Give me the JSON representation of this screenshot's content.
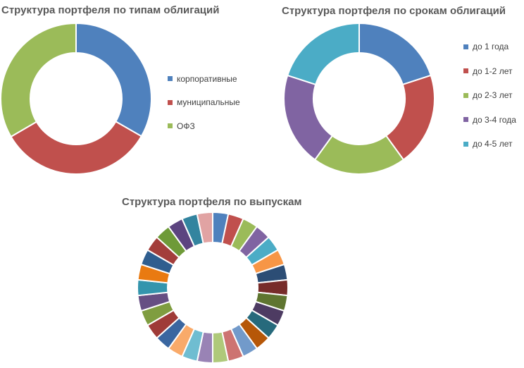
{
  "chart_data": [
    {
      "type": "pie",
      "title": "Структура портфеля по типам облигаций",
      "categories": [
        "корпоративные",
        "муниципальные",
        "ОФЗ"
      ],
      "values": [
        33.3,
        33.3,
        33.4
      ],
      "colors": [
        "#4F81BD",
        "#C0504D",
        "#9BBB59"
      ],
      "legend_position": "right"
    },
    {
      "type": "pie",
      "title": "Структура портфеля по срокам облигаций",
      "categories": [
        "до 1 года",
        "до 1-2 лет",
        "до 2-3 лет",
        "до 3-4 года",
        "до 4-5 лет"
      ],
      "values": [
        20,
        20,
        20,
        20,
        20
      ],
      "colors": [
        "#4F81BD",
        "#C0504D",
        "#9BBB59",
        "#8064A2",
        "#4BACC6"
      ],
      "legend_position": "right"
    },
    {
      "type": "pie",
      "title": "Структура портфеля по выпускам",
      "values": [
        1,
        1,
        1,
        1,
        1,
        1,
        1,
        1,
        1,
        1,
        1,
        1,
        1,
        1,
        1,
        1,
        1,
        1,
        1,
        1,
        1,
        1,
        1,
        1,
        1,
        1,
        1,
        1,
        1,
        1
      ],
      "colors": [
        "#4F81BD",
        "#C0504D",
        "#9BBB59",
        "#8064A2",
        "#4BACC6",
        "#F79646",
        "#2C4D75",
        "#772C2A",
        "#5F7530",
        "#4D3B62",
        "#276A7C",
        "#B65708",
        "#729ACA",
        "#CD7371",
        "#AFC97A",
        "#9983B5",
        "#6FBDD1",
        "#F9AA6A",
        "#3A66A0",
        "#9F3B38",
        "#7F9D40",
        "#664F83",
        "#3495AD",
        "#E97A11",
        "#2F5E8F",
        "#A33E3B",
        "#6E9A38",
        "#5C4480",
        "#33849F",
        "#E1A3A3"
      ],
      "legend_position": "none"
    }
  ]
}
